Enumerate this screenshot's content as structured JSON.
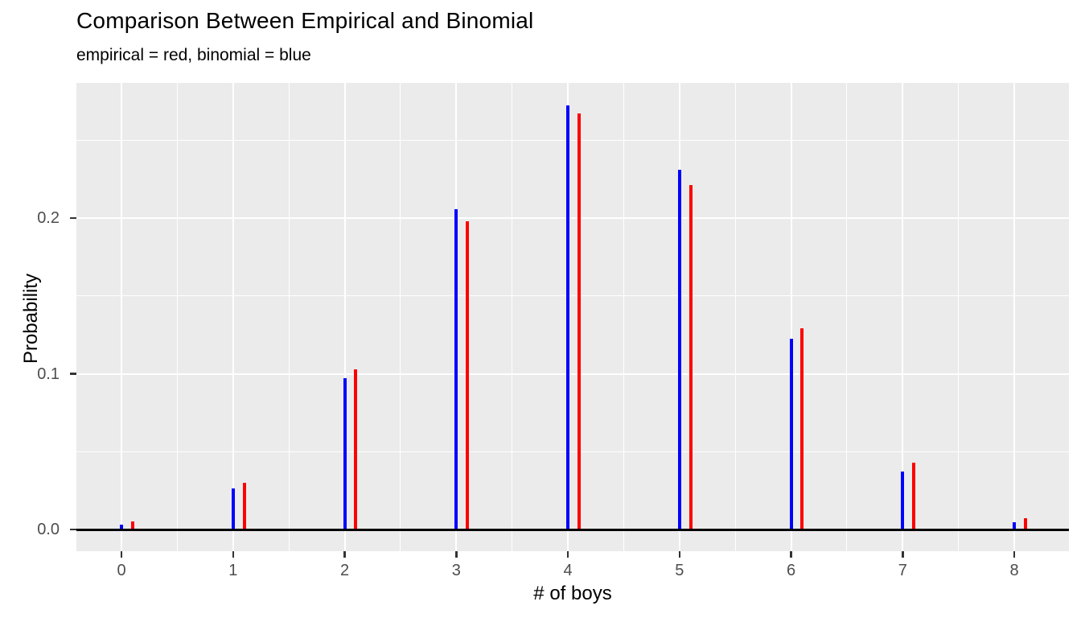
{
  "header": {
    "title": "Comparison Between Empirical and Binomial",
    "subtitle": "empirical = red, binomial = blue"
  },
  "colors": {
    "empirical": "#FF0000",
    "binomial": "#0000FF",
    "panel_background": "#EBEBEB",
    "gridline": "#FFFFFF",
    "axis_line": "#000000",
    "tick_label": "#4D4D4D",
    "tick_mark": "#333333",
    "text": "#000000"
  },
  "chart_data": {
    "type": "bar",
    "title": "Comparison Between Empirical and Binomial",
    "subtitle": "empirical = red, binomial = blue",
    "xlabel": "# of boys",
    "ylabel": "Probability",
    "categories": [
      0,
      1,
      2,
      3,
      4,
      5,
      6,
      7,
      8
    ],
    "x_tick_labels": [
      "0",
      "1",
      "2",
      "3",
      "4",
      "5",
      "6",
      "7",
      "8"
    ],
    "series": [
      {
        "name": "binomial",
        "color": "#0000FF",
        "x_offset": 0,
        "values": [
          0.0031,
          0.0261,
          0.0969,
          0.2056,
          0.2725,
          0.2312,
          0.1226,
          0.0371,
          0.0049
        ]
      },
      {
        "name": "empirical",
        "color": "#FF0000",
        "x_offset": 0.1,
        "values": [
          0.005,
          0.03,
          0.103,
          0.198,
          0.267,
          0.221,
          0.129,
          0.043,
          0.007
        ]
      }
    ],
    "y_major_ticks": {
      "values": [
        0,
        0.1,
        0.2
      ],
      "labels": [
        "0.0",
        "0.1",
        "0.2"
      ]
    },
    "y_minor_values": [
      0.05,
      0.15,
      0.25
    ],
    "ylim": [
      -0.014,
      0.287
    ],
    "xlim": [
      -0.4,
      8.5
    ],
    "grid": "major and minor, white on grey panel",
    "legend_position": "none",
    "baseline_value": 0
  }
}
